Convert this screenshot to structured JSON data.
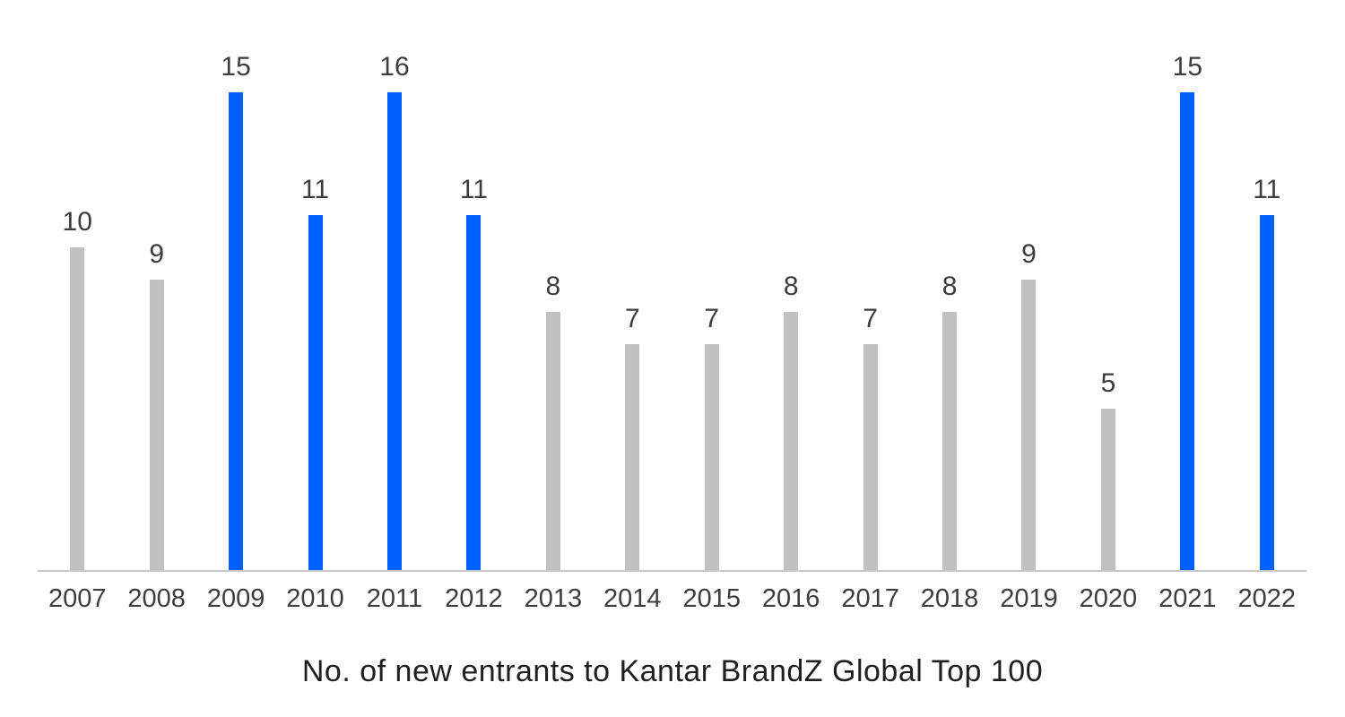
{
  "chart_data": {
    "type": "bar",
    "title": "No. of new entrants to Kantar BrandZ Global Top 100",
    "categories": [
      "2007",
      "2008",
      "2009",
      "2010",
      "2011",
      "2012",
      "2013",
      "2014",
      "2015",
      "2016",
      "2017",
      "2018",
      "2019",
      "2020",
      "2021",
      "2022"
    ],
    "values": [
      10,
      9,
      15,
      11,
      16,
      11,
      8,
      7,
      7,
      8,
      7,
      8,
      9,
      5,
      15,
      11
    ],
    "bar_styles": [
      "gray",
      "gray",
      "blue",
      "blue",
      "blue",
      "blue",
      "gray",
      "gray",
      "gray",
      "gray",
      "gray",
      "gray",
      "gray",
      "gray",
      "blue",
      "blue"
    ],
    "value_labels_shown": true,
    "ylim": [
      0,
      16
    ],
    "grid": false,
    "legend": "none",
    "colors": {
      "blue": "#0061fc",
      "gray": "#c1c1c1",
      "value_label": "#3d3d3d",
      "tick_label": "#3d3d3d",
      "title": "#1f1f1f",
      "axis_line": "#c8c8c8"
    }
  }
}
